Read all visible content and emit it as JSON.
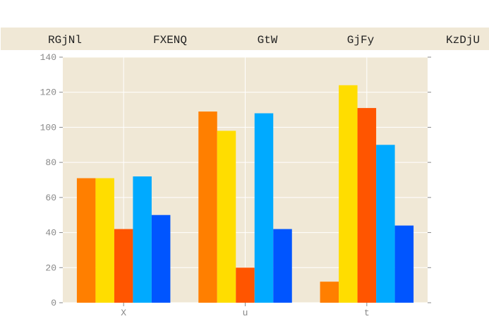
{
  "chart_data": {
    "type": "bar",
    "categories": [
      "X",
      "u",
      "t"
    ],
    "series": [
      {
        "name": "RGjNl",
        "color": "#ff7f00",
        "values": [
          71,
          109,
          12
        ]
      },
      {
        "name": "FXENQ",
        "color": "#ffdd00",
        "values": [
          71,
          98,
          124
        ]
      },
      {
        "name": "GtW",
        "color": "#ff5500",
        "values": [
          42,
          20,
          111
        ]
      },
      {
        "name": "GjFy",
        "color": "#00aaff",
        "values": [
          72,
          108,
          90
        ]
      },
      {
        "name": "KzDjU",
        "color": "#0055ff",
        "values": [
          50,
          42,
          44
        ]
      }
    ],
    "title": "",
    "xlabel": "",
    "ylabel": "",
    "ylim": [
      0,
      140
    ],
    "yticks": [
      "0",
      "20",
      "40",
      "60",
      "80",
      "100",
      "120",
      "140"
    ],
    "grid": true,
    "legend_position": "top",
    "plot_background": "#f0e8d6"
  }
}
